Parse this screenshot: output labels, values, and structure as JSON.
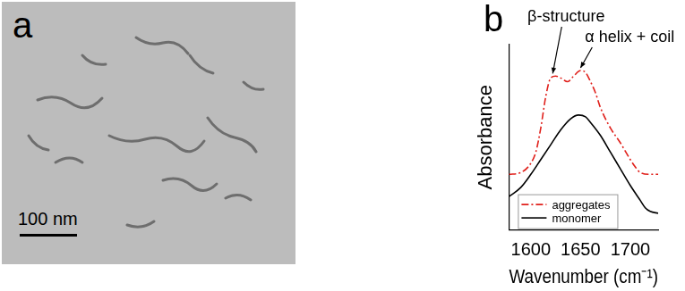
{
  "image": {
    "label": "a",
    "scale_bar": "100 nm"
  },
  "chart_data": {
    "label": "b",
    "type": "line",
    "x_label": "Wavenumber (cm⁻¹)",
    "y_label": "Absorbance",
    "xlim": [
      1578,
      1728
    ],
    "xticks": [
      1600,
      1650,
      1700
    ],
    "ylim": [
      0,
      1
    ],
    "tick_labels": "x",
    "grid": false,
    "legend": "lower left",
    "annotations": [
      {
        "text": "β-structure",
        "x": 1622,
        "y": 0.83
      },
      {
        "text": "α helix + coil",
        "x": 1650,
        "y": 0.86
      }
    ],
    "series": [
      {
        "name": "aggregates",
        "color": "#e0201b",
        "line_style": "dashdot",
        "x": [
          1578,
          1590,
          1600,
          1605,
          1610,
          1615,
          1620,
          1625,
          1630,
          1637,
          1643,
          1650,
          1655,
          1660,
          1665,
          1670,
          1680,
          1690,
          1700,
          1705,
          1710,
          1720,
          1728
        ],
        "values": [
          0.3,
          0.31,
          0.36,
          0.42,
          0.55,
          0.72,
          0.82,
          0.83,
          0.82,
          0.8,
          0.83,
          0.86,
          0.85,
          0.8,
          0.74,
          0.66,
          0.55,
          0.47,
          0.38,
          0.34,
          0.31,
          0.3,
          0.3
        ]
      },
      {
        "name": "monomer",
        "color": "#000000",
        "line_style": "solid",
        "x": [
          1578,
          1590,
          1600,
          1610,
          1620,
          1630,
          1640,
          1648,
          1655,
          1660,
          1670,
          1680,
          1690,
          1700,
          1710,
          1715,
          1720,
          1728
        ],
        "values": [
          0.18,
          0.23,
          0.3,
          0.38,
          0.46,
          0.54,
          0.6,
          0.62,
          0.61,
          0.58,
          0.51,
          0.42,
          0.33,
          0.24,
          0.16,
          0.12,
          0.1,
          0.09
        ]
      }
    ]
  }
}
